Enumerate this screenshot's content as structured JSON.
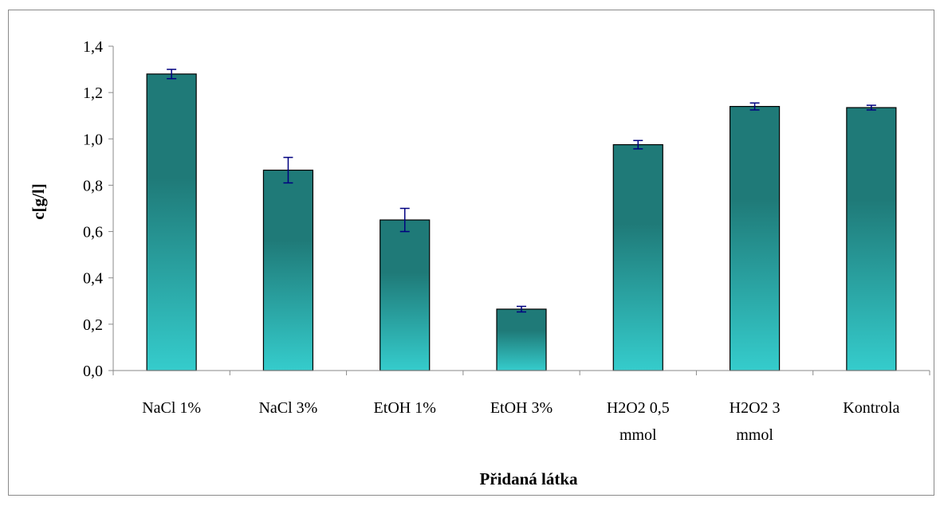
{
  "chart_data": {
    "type": "bar",
    "categories": [
      "NaCl 1%",
      "NaCl 3%",
      "EtOH 1%",
      "EtOH 3%",
      "H2O2 0,5 mmol",
      "H2O2 3 mmol",
      "Kontrola"
    ],
    "category_lines": [
      [
        "NaCl 1%"
      ],
      [
        "NaCl 3%"
      ],
      [
        "EtOH 1%"
      ],
      [
        "EtOH 3%"
      ],
      [
        "H2O2 0,5",
        "mmol"
      ],
      [
        "H2O2 3",
        "mmol"
      ],
      [
        "Kontrola"
      ]
    ],
    "values": [
      1.28,
      0.865,
      0.65,
      0.265,
      0.975,
      1.14,
      1.135
    ],
    "errors": [
      0.02,
      0.055,
      0.05,
      0.012,
      0.018,
      0.015,
      0.01
    ],
    "xlabel": "Přidaná látka",
    "ylabel": "c[g/l]",
    "ylim": [
      0,
      1.4
    ],
    "yticks": [
      0,
      0.2,
      0.4,
      0.6,
      0.8,
      1.0,
      1.2,
      1.4
    ],
    "ytick_labels": [
      "0,0",
      "0,2",
      "0,4",
      "0,6",
      "0,8",
      "1,0",
      "1,2",
      "1,4"
    ],
    "grid": false,
    "legend": "none",
    "colors": {
      "bar_top": "#1f7a78",
      "bar_bottom": "#35cccc",
      "bar_outline": "#000000",
      "error_bar": "#000080",
      "axis": "#8a8a8a",
      "frame": "#8a8a8a"
    }
  }
}
